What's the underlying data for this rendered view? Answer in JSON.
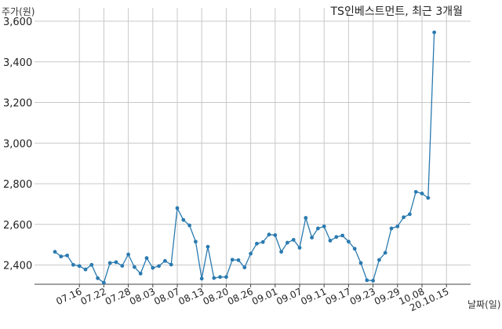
{
  "chart_data": {
    "type": "line",
    "title": "TS인베스트먼트, 최근 3개월",
    "ylabel": "주가(원)",
    "xlabel": "날짜(일)",
    "ylim": [
      2260,
      3600
    ],
    "yticks": [
      2400,
      2600,
      2800,
      3000,
      3200,
      3400,
      3600
    ],
    "ytick_labels": [
      "2,400",
      "2,600",
      "2,800",
      "3,000",
      "3,200",
      "3,400",
      "3,600"
    ],
    "grid": true,
    "xtick_labels": [
      "07.16",
      "07.22",
      "07.28",
      "08.03",
      "08.07",
      "08.13",
      "08.20",
      "08.26",
      "09.01",
      "09.07",
      "09.11",
      "09.17",
      "09.23",
      "09.29",
      "10.08",
      "20.10.15"
    ],
    "xtick_index": [
      4,
      8,
      12,
      16,
      20,
      24,
      28,
      32,
      36,
      40,
      44,
      48,
      52,
      56,
      60,
      64
    ],
    "series": [
      {
        "values": [
          2465,
          2442,
          2447,
          2401,
          2395,
          2378,
          2401,
          2335,
          2313,
          2410,
          2414,
          2396,
          2452,
          2390,
          2358,
          2434,
          2386,
          2395,
          2420,
          2402,
          2680,
          2622,
          2595,
          2515,
          2333,
          2490,
          2336,
          2341,
          2341,
          2426,
          2424,
          2388,
          2456,
          2505,
          2513,
          2550,
          2547,
          2465,
          2510,
          2524,
          2485,
          2632,
          2535,
          2580,
          2590,
          2520,
          2538,
          2545,
          2515,
          2480,
          2410,
          2325,
          2323,
          2425,
          2460,
          2580,
          2590,
          2635,
          2650,
          2760,
          2752,
          2730,
          3545
        ],
        "color": "#2a7ab0"
      }
    ]
  }
}
